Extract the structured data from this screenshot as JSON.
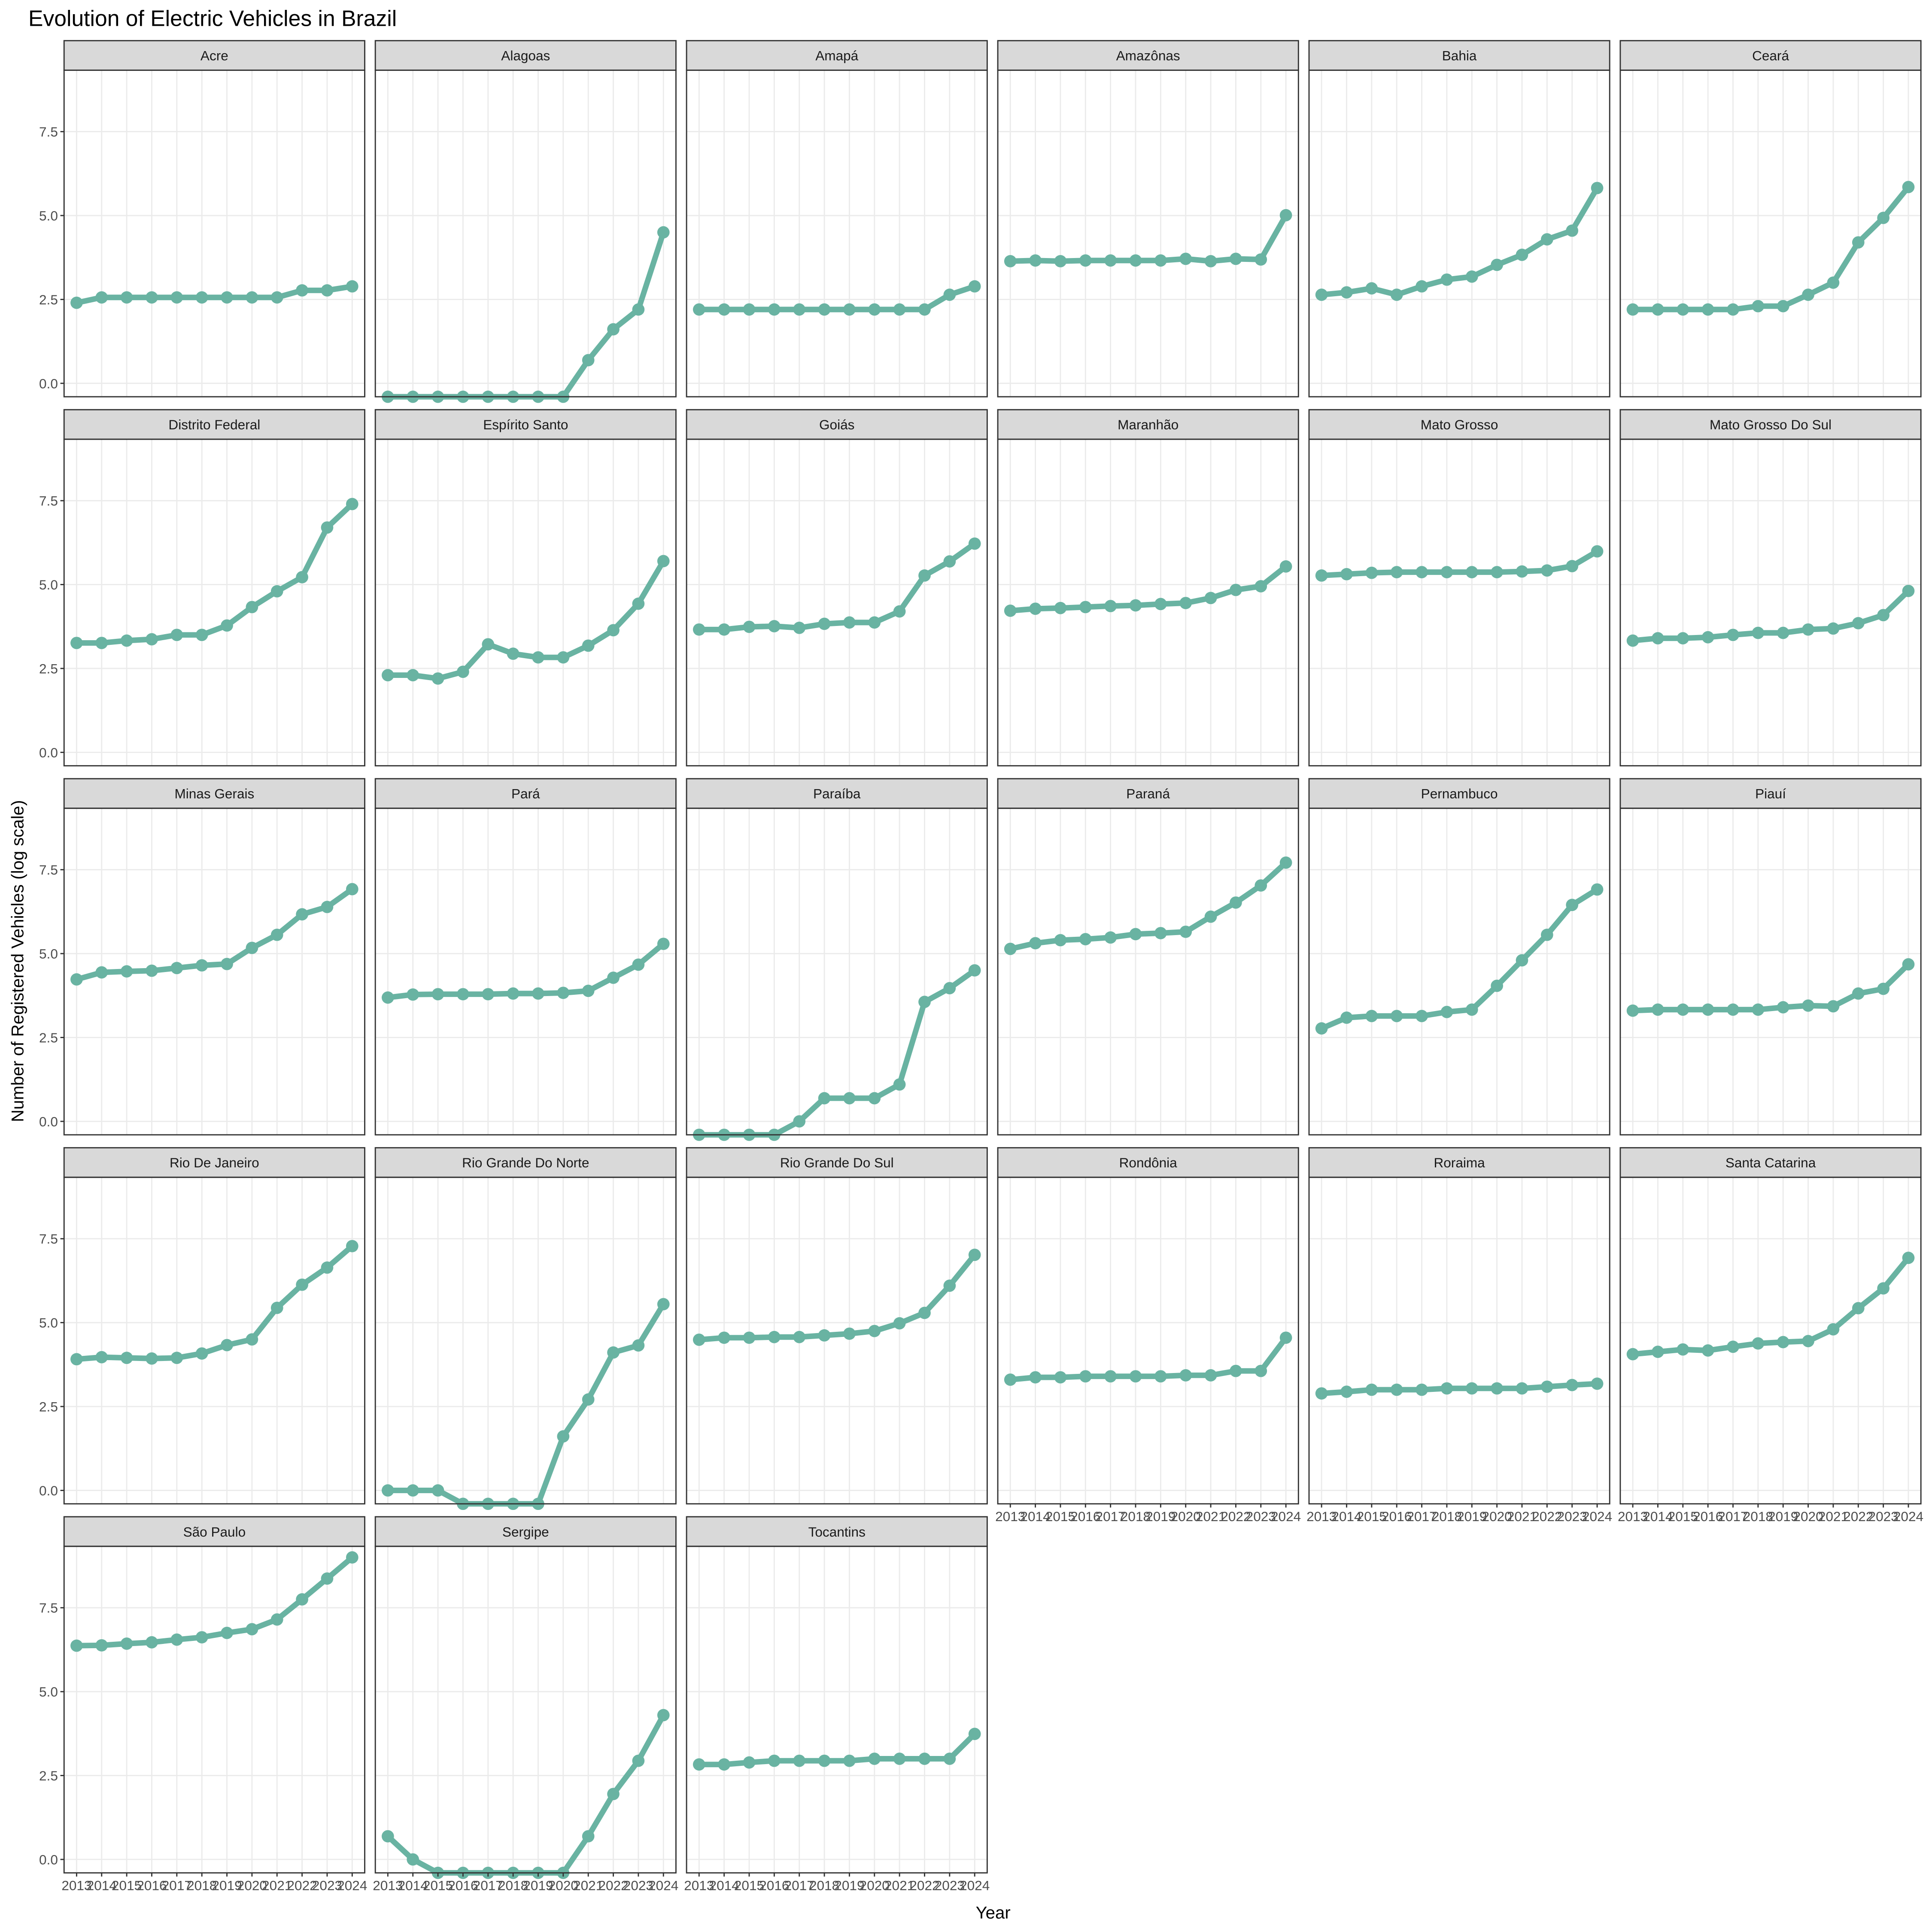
{
  "chart_data": {
    "type": "line",
    "title": "Evolution of Electric Vehicles in Brazil",
    "xlabel": "Year",
    "ylabel": "Number of Registered Vehicles (log scale)",
    "color": "#69b3a2",
    "grid": true,
    "x": [
      2013,
      2014,
      2015,
      2016,
      2017,
      2018,
      2019,
      2020,
      2021,
      2022,
      2023,
      2024
    ],
    "xlim": [
      2012.5,
      2024.5
    ],
    "ylim": [
      -0.4,
      9.33
    ],
    "yticks": [
      {
        "value": 0,
        "label": "0.0"
      },
      {
        "value": 2.5,
        "label": "2.5"
      },
      {
        "value": 5,
        "label": "5.0"
      },
      {
        "value": 7.5,
        "label": "7.5"
      }
    ],
    "facets": [
      {
        "name": "Acre",
        "values": [
          2.4,
          2.56,
          2.56,
          2.56,
          2.56,
          2.56,
          2.56,
          2.56,
          2.56,
          2.77,
          2.77,
          2.89
        ]
      },
      {
        "name": "Alagoas",
        "values": [
          -0.4,
          -0.4,
          -0.4,
          -0.4,
          -0.4,
          -0.4,
          -0.4,
          -0.4,
          0.69,
          1.61,
          2.2,
          4.5
        ]
      },
      {
        "name": "Amapá",
        "values": [
          2.2,
          2.2,
          2.2,
          2.2,
          2.2,
          2.2,
          2.2,
          2.2,
          2.2,
          2.2,
          2.64,
          2.89
        ]
      },
      {
        "name": "Amazônas",
        "values": [
          3.64,
          3.66,
          3.64,
          3.66,
          3.66,
          3.66,
          3.66,
          3.71,
          3.64,
          3.71,
          3.69,
          5.01
        ]
      },
      {
        "name": "Bahia",
        "values": [
          2.64,
          2.71,
          2.83,
          2.64,
          2.89,
          3.09,
          3.18,
          3.53,
          3.83,
          4.29,
          4.55,
          5.82
        ]
      },
      {
        "name": "Ceará",
        "values": [
          2.2,
          2.2,
          2.2,
          2.2,
          2.2,
          2.3,
          2.3,
          2.64,
          3.0,
          4.2,
          4.93,
          5.85
        ]
      },
      {
        "name": "Distrito Federal",
        "values": [
          3.26,
          3.26,
          3.33,
          3.37,
          3.5,
          3.5,
          3.78,
          4.33,
          4.8,
          5.22,
          6.7,
          7.4
        ]
      },
      {
        "name": "Espírito Santo",
        "values": [
          2.3,
          2.3,
          2.2,
          2.4,
          3.22,
          2.94,
          2.83,
          2.83,
          3.18,
          3.64,
          4.43,
          5.7
        ]
      },
      {
        "name": "Goiás",
        "values": [
          3.66,
          3.66,
          3.74,
          3.76,
          3.71,
          3.83,
          3.87,
          3.87,
          4.2,
          5.27,
          5.69,
          6.22
        ]
      },
      {
        "name": "Maranhão",
        "values": [
          4.22,
          4.28,
          4.3,
          4.33,
          4.36,
          4.38,
          4.42,
          4.45,
          4.6,
          4.84,
          4.95,
          5.54
        ]
      },
      {
        "name": "Mato Grosso",
        "values": [
          5.27,
          5.31,
          5.35,
          5.37,
          5.37,
          5.37,
          5.37,
          5.37,
          5.39,
          5.42,
          5.55,
          5.99
        ]
      },
      {
        "name": "Mato Grosso Do Sul",
        "values": [
          3.33,
          3.4,
          3.4,
          3.43,
          3.5,
          3.56,
          3.56,
          3.66,
          3.69,
          3.85,
          4.09,
          4.81
        ]
      },
      {
        "name": "Minas Gerais",
        "values": [
          4.23,
          4.44,
          4.47,
          4.49,
          4.57,
          4.65,
          4.69,
          5.17,
          5.56,
          6.17,
          6.39,
          6.92
        ]
      },
      {
        "name": "Pará",
        "values": [
          3.69,
          3.78,
          3.79,
          3.79,
          3.79,
          3.81,
          3.81,
          3.83,
          3.89,
          4.28,
          4.67,
          5.29
        ]
      },
      {
        "name": "Paraíba",
        "values": [
          -0.4,
          -0.4,
          -0.4,
          -0.4,
          0.0,
          0.69,
          0.69,
          0.69,
          1.1,
          3.56,
          3.97,
          4.5
        ]
      },
      {
        "name": "Paraná",
        "values": [
          5.14,
          5.31,
          5.4,
          5.43,
          5.48,
          5.58,
          5.61,
          5.65,
          6.1,
          6.52,
          7.03,
          7.71
        ]
      },
      {
        "name": "Pernambuco",
        "values": [
          2.77,
          3.09,
          3.14,
          3.14,
          3.14,
          3.26,
          3.33,
          4.04,
          4.8,
          5.56,
          6.45,
          6.91
        ]
      },
      {
        "name": "Piauí",
        "values": [
          3.3,
          3.33,
          3.33,
          3.33,
          3.33,
          3.33,
          3.4,
          3.45,
          3.43,
          3.81,
          3.95,
          4.68
        ]
      },
      {
        "name": "Rio De Janeiro",
        "values": [
          3.91,
          3.97,
          3.95,
          3.93,
          3.95,
          4.08,
          4.33,
          4.5,
          5.44,
          6.13,
          6.64,
          7.28
        ]
      },
      {
        "name": "Rio Grande Do Norte",
        "values": [
          0.0,
          0.0,
          0.0,
          -0.4,
          -0.4,
          -0.4,
          -0.4,
          1.61,
          2.71,
          4.11,
          4.32,
          5.55
        ]
      },
      {
        "name": "Rio Grande Do Sul",
        "values": [
          4.49,
          4.55,
          4.55,
          4.57,
          4.57,
          4.62,
          4.67,
          4.75,
          4.98,
          5.29,
          6.1,
          7.02
        ]
      },
      {
        "name": "Rondônia",
        "values": [
          3.3,
          3.37,
          3.37,
          3.4,
          3.4,
          3.4,
          3.4,
          3.43,
          3.43,
          3.56,
          3.56,
          4.55
        ]
      },
      {
        "name": "Roraima",
        "values": [
          2.89,
          2.94,
          3.0,
          3.0,
          3.0,
          3.04,
          3.04,
          3.04,
          3.04,
          3.09,
          3.14,
          3.18
        ]
      },
      {
        "name": "Santa Catarina",
        "values": [
          4.06,
          4.13,
          4.2,
          4.17,
          4.28,
          4.38,
          4.42,
          4.45,
          4.8,
          5.43,
          6.02,
          6.93
        ]
      },
      {
        "name": "São Paulo",
        "values": [
          6.37,
          6.38,
          6.43,
          6.47,
          6.55,
          6.62,
          6.75,
          6.86,
          7.15,
          7.75,
          8.37,
          9.0
        ]
      },
      {
        "name": "Sergipe",
        "values": [
          0.69,
          0.0,
          -0.4,
          -0.4,
          -0.4,
          -0.4,
          -0.4,
          -0.4,
          0.69,
          1.95,
          2.94,
          4.3
        ]
      },
      {
        "name": "Tocantins",
        "values": [
          2.83,
          2.83,
          2.89,
          2.94,
          2.94,
          2.94,
          2.94,
          3.0,
          3.0,
          3.0,
          3.0,
          3.74
        ]
      }
    ]
  }
}
